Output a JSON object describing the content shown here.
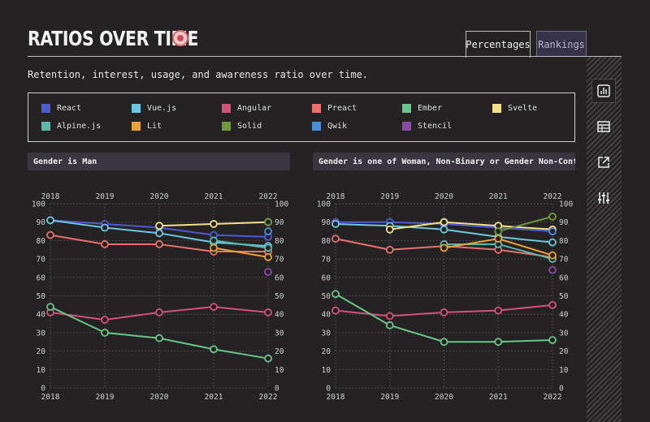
{
  "header": {
    "title": "RATIOS OVER TIME",
    "tabs": [
      {
        "label": "Percentages",
        "active": true
      },
      {
        "label": "Rankings",
        "active": false
      }
    ],
    "subtitle": "Retention, interest, usage, and awareness ratio over time."
  },
  "legend": [
    {
      "name": "React",
      "color": "#4f5bd5"
    },
    {
      "name": "Vue.js",
      "color": "#6ec6e0"
    },
    {
      "name": "Angular",
      "color": "#d6517a"
    },
    {
      "name": "Preact",
      "color": "#e8716e"
    },
    {
      "name": "Ember",
      "color": "#6cc48a"
    },
    {
      "name": "Svelte",
      "color": "#f3e08c"
    },
    {
      "name": "Alpine.js",
      "color": "#5bb8ad"
    },
    {
      "name": "Lit",
      "color": "#e8a23c"
    },
    {
      "name": "Solid",
      "color": "#6f9a3c"
    },
    {
      "name": "Qwik",
      "color": "#4a8fd6"
    },
    {
      "name": "Stencil",
      "color": "#8a4ba8"
    }
  ],
  "sidebar": {
    "icons": [
      "bar-chart-icon",
      "table-icon",
      "external-link-icon",
      "sliders-icon"
    ]
  },
  "chart_data": [
    {
      "type": "line",
      "title": "Gender is Man",
      "x": [
        2018,
        2019,
        2020,
        2021,
        2022
      ],
      "ylim": [
        0,
        100
      ],
      "yticks": [
        0,
        10,
        20,
        30,
        40,
        50,
        60,
        70,
        80,
        90,
        100
      ],
      "grid": true,
      "series": [
        {
          "name": "React",
          "color": "#4f5bd5",
          "values": [
            91,
            89,
            87,
            83,
            82
          ]
        },
        {
          "name": "Vue.js",
          "color": "#6ec6e0",
          "values": [
            91,
            87,
            84,
            79,
            77
          ]
        },
        {
          "name": "Angular",
          "color": "#d6517a",
          "values": [
            41,
            37,
            41,
            44,
            41
          ]
        },
        {
          "name": "Preact",
          "color": "#e8716e",
          "values": [
            83,
            78,
            78,
            74,
            74
          ]
        },
        {
          "name": "Ember",
          "color": "#6cc48a",
          "values": [
            44,
            30,
            27,
            21,
            16
          ]
        },
        {
          "name": "Svelte",
          "color": "#f3e08c",
          "values": [
            null,
            null,
            88,
            89,
            90
          ]
        },
        {
          "name": "Alpine.js",
          "color": "#5bb8ad",
          "values": [
            null,
            null,
            null,
            80,
            76
          ]
        },
        {
          "name": "Lit",
          "color": "#e8a23c",
          "values": [
            null,
            null,
            null,
            76,
            71
          ]
        },
        {
          "name": "Solid",
          "color": "#6f9a3c",
          "values": [
            null,
            null,
            null,
            null,
            90
          ]
        },
        {
          "name": "Qwik",
          "color": "#4a8fd6",
          "values": [
            null,
            null,
            null,
            null,
            85
          ]
        },
        {
          "name": "Stencil",
          "color": "#8a4ba8",
          "values": [
            null,
            null,
            null,
            null,
            63
          ]
        }
      ]
    },
    {
      "type": "line",
      "title": "Gender is one of Woman, Non-Binary or Gender Non-Conforming",
      "x": [
        2018,
        2019,
        2020,
        2021,
        2022
      ],
      "ylim": [
        0,
        100
      ],
      "yticks": [
        0,
        10,
        20,
        30,
        40,
        50,
        60,
        70,
        80,
        90,
        100
      ],
      "grid": true,
      "series": [
        {
          "name": "React",
          "color": "#4f5bd5",
          "values": [
            90,
            90,
            89,
            87,
            85
          ]
        },
        {
          "name": "Vue.js",
          "color": "#6ec6e0",
          "values": [
            89,
            88,
            86,
            82,
            79
          ]
        },
        {
          "name": "Angular",
          "color": "#d6517a",
          "values": [
            42,
            39,
            41,
            42,
            45
          ]
        },
        {
          "name": "Preact",
          "color": "#e8716e",
          "values": [
            81,
            75,
            77,
            75,
            71
          ]
        },
        {
          "name": "Ember",
          "color": "#6cc48a",
          "values": [
            51,
            34,
            25,
            25,
            26
          ]
        },
        {
          "name": "Svelte",
          "color": "#f3e08c",
          "values": [
            null,
            86,
            90,
            88,
            86
          ]
        },
        {
          "name": "Alpine.js",
          "color": "#5bb8ad",
          "values": [
            null,
            null,
            78,
            78,
            70
          ]
        },
        {
          "name": "Lit",
          "color": "#e8a23c",
          "values": [
            null,
            null,
            76,
            81,
            72
          ]
        },
        {
          "name": "Solid",
          "color": "#6f9a3c",
          "values": [
            null,
            null,
            null,
            85,
            93
          ]
        },
        {
          "name": "Qwik",
          "color": "#4a8fd6",
          "values": [
            null,
            null,
            null,
            null,
            85
          ]
        },
        {
          "name": "Stencil",
          "color": "#8a4ba8",
          "values": [
            null,
            null,
            null,
            null,
            64
          ]
        }
      ]
    }
  ]
}
